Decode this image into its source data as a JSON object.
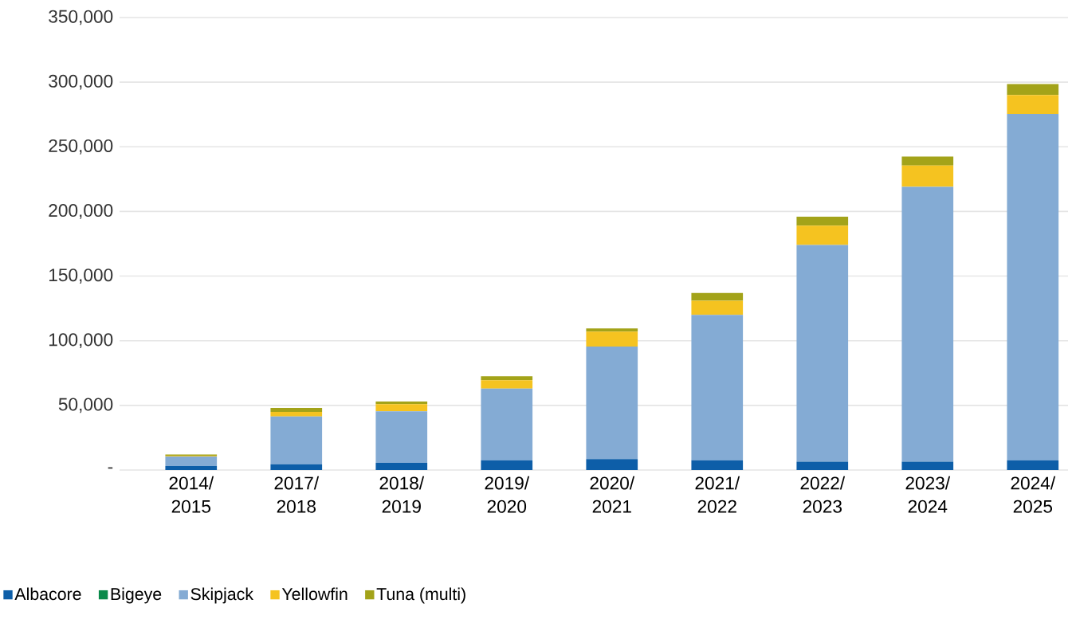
{
  "chart_data": {
    "type": "bar",
    "stacked": true,
    "categories": [
      "2014/ 2015",
      "2017/ 2018",
      "2018/ 2019",
      "2019/ 2020",
      "2020/ 2021",
      "2021/ 2022",
      "2022/ 2023",
      "2023/ 2024",
      "2024/ 2025"
    ],
    "series": [
      {
        "name": "Albacore",
        "color": "#0d5ea8",
        "values": [
          3000,
          4500,
          5500,
          7500,
          8500,
          7500,
          6500,
          6500,
          7500
        ]
      },
      {
        "name": "Bigeye",
        "color": "#0a8a4a",
        "values": [
          0,
          0,
          0,
          0,
          0,
          0,
          0,
          0,
          0
        ]
      },
      {
        "name": "Skipjack",
        "color": "#84abd4",
        "values": [
          7500,
          37000,
          40000,
          55500,
          87000,
          112500,
          167500,
          212500,
          268000
        ]
      },
      {
        "name": "Yellowfin",
        "color": "#f5c320",
        "values": [
          500,
          3500,
          5500,
          6500,
          11500,
          11000,
          15000,
          16500,
          14500
        ]
      },
      {
        "name": "Tuna (multi)",
        "color": "#a3a319",
        "values": [
          1000,
          3000,
          2000,
          3000,
          2500,
          6000,
          7000,
          7000,
          8500
        ]
      }
    ],
    "ylim": [
      0,
      350000
    ],
    "yticks": [
      {
        "value": 0,
        "label": "-"
      },
      {
        "value": 50000,
        "label": "50,000"
      },
      {
        "value": 100000,
        "label": "100,000"
      },
      {
        "value": 150000,
        "label": "150,000"
      },
      {
        "value": 200000,
        "label": "200,000"
      },
      {
        "value": 250000,
        "label": "250,000"
      },
      {
        "value": 300000,
        "label": "300,000"
      },
      {
        "value": 350000,
        "label": "350,000"
      }
    ],
    "grid": "y",
    "legend": "bottom"
  }
}
